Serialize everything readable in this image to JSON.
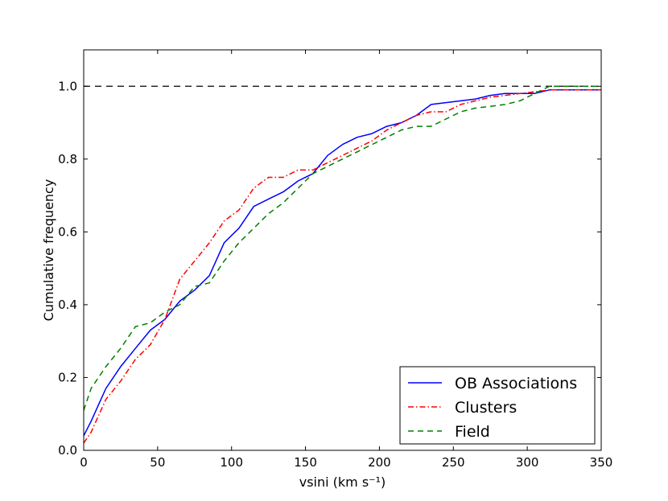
{
  "chart_data": {
    "type": "line",
    "title": "",
    "xlabel": "vsini (km s⁻¹)",
    "ylabel": "Cumulative frequency",
    "xlim": [
      0,
      350
    ],
    "ylim": [
      0.0,
      1.1
    ],
    "xticks": [
      "0",
      "50",
      "100",
      "150",
      "200",
      "250",
      "300",
      "350"
    ],
    "yticks": [
      "0.0",
      "0.2",
      "0.4",
      "0.6",
      "0.8",
      "1.0"
    ],
    "reference_line": {
      "y": 1.0,
      "style": "dashed",
      "color": "#000000"
    },
    "legend_position": "lower-right",
    "series": [
      {
        "name": "OB Associations",
        "color": "#0000ff",
        "style": "solid",
        "x": [
          0,
          5,
          15,
          25,
          35,
          45,
          55,
          65,
          75,
          85,
          95,
          105,
          115,
          125,
          135,
          145,
          155,
          165,
          175,
          185,
          195,
          205,
          215,
          225,
          235,
          245,
          255,
          265,
          275,
          285,
          295,
          305,
          315,
          325,
          335,
          350
        ],
        "y": [
          0.04,
          0.08,
          0.17,
          0.23,
          0.28,
          0.33,
          0.36,
          0.41,
          0.44,
          0.48,
          0.57,
          0.61,
          0.67,
          0.69,
          0.71,
          0.74,
          0.76,
          0.81,
          0.84,
          0.86,
          0.87,
          0.89,
          0.9,
          0.92,
          0.95,
          0.955,
          0.96,
          0.965,
          0.975,
          0.98,
          0.98,
          0.98,
          0.99,
          0.99,
          0.99,
          0.99
        ]
      },
      {
        "name": "Clusters",
        "color": "#ff0000",
        "style": "dashdot",
        "x": [
          0,
          5,
          15,
          25,
          35,
          45,
          55,
          65,
          75,
          85,
          95,
          105,
          115,
          125,
          135,
          145,
          155,
          165,
          175,
          185,
          195,
          205,
          215,
          225,
          235,
          245,
          255,
          265,
          275,
          285,
          295,
          305,
          315,
          325,
          335,
          350
        ],
        "y": [
          0.02,
          0.05,
          0.14,
          0.19,
          0.25,
          0.29,
          0.36,
          0.47,
          0.52,
          0.57,
          0.63,
          0.66,
          0.72,
          0.75,
          0.75,
          0.77,
          0.77,
          0.79,
          0.81,
          0.83,
          0.85,
          0.88,
          0.9,
          0.92,
          0.93,
          0.93,
          0.95,
          0.96,
          0.97,
          0.975,
          0.98,
          0.985,
          0.99,
          0.99,
          0.99,
          0.99
        ]
      },
      {
        "name": "Field",
        "color": "#008000",
        "style": "dashed",
        "x": [
          0,
          5,
          15,
          25,
          35,
          45,
          55,
          65,
          75,
          85,
          95,
          105,
          115,
          125,
          135,
          145,
          155,
          165,
          175,
          185,
          195,
          205,
          215,
          225,
          235,
          245,
          255,
          265,
          275,
          285,
          295,
          305,
          315,
          325,
          335,
          350
        ],
        "y": [
          0.11,
          0.17,
          0.23,
          0.28,
          0.34,
          0.35,
          0.38,
          0.4,
          0.45,
          0.46,
          0.52,
          0.57,
          0.61,
          0.65,
          0.68,
          0.72,
          0.76,
          0.78,
          0.8,
          0.82,
          0.84,
          0.86,
          0.88,
          0.89,
          0.89,
          0.91,
          0.93,
          0.94,
          0.945,
          0.95,
          0.96,
          0.98,
          1.0,
          1.0,
          1.0,
          1.0
        ]
      }
    ]
  }
}
